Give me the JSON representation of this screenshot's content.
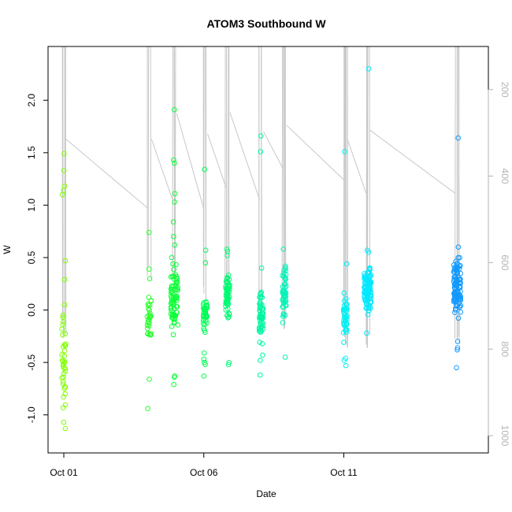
{
  "chart_data": {
    "type": "scatter",
    "title": "ATOM3 Southbound W",
    "xlabel": "Date",
    "ylabel": "W",
    "xlim": [
      0.0,
      14.6
    ],
    "ylim": [
      -1.25,
      2.4
    ],
    "x_ticks": [
      {
        "value": 0,
        "label": "Oct 01"
      },
      {
        "value": 5,
        "label": "Oct 06"
      },
      {
        "value": 10,
        "label": "Oct 11"
      }
    ],
    "y_ticks": [
      -1.0,
      -0.5,
      0.0,
      0.5,
      1.0,
      1.5,
      2.0
    ],
    "right_axis": {
      "label": "",
      "lim": [
        1040,
        155
      ],
      "ticks": [
        200,
        400,
        600,
        800,
        1000
      ],
      "color": "#b3b3b3"
    },
    "grid": false,
    "colors": {
      "points_start": "#7fff00",
      "points_mid": "#00ffcc",
      "points_end": "#1e90ff",
      "line": "#c8c8c8"
    },
    "casts": [
      {
        "x": 0.0,
        "n": 30,
        "min": -1.13,
        "max": 0.1,
        "top": 160,
        "bottom": 720,
        "extras": [
          1.49,
          1.33,
          1.18,
          1.14,
          1.1,
          0.47,
          0.29,
          0.05,
          -0.05,
          -0.07,
          -0.75,
          -0.8,
          -0.83,
          -1.07,
          -1.13
        ]
      },
      {
        "x": 3.05,
        "n": 28,
        "min": -0.32,
        "max": 0.2,
        "top": 165,
        "bottom": 590,
        "extras": [
          0.74,
          0.39,
          0.3,
          -0.66,
          -0.94
        ]
      },
      {
        "x": 3.95,
        "n": 75,
        "min": -0.4,
        "max": 0.55,
        "top": 155,
        "bottom": 620,
        "extras": [
          1.91,
          1.43,
          1.4,
          1.11,
          1.03,
          0.84,
          0.7,
          0.62,
          -0.63,
          -0.64,
          -0.71
        ]
      },
      {
        "x": 5.05,
        "n": 38,
        "min": -0.25,
        "max": 0.22,
        "top": 155,
        "bottom": 650,
        "extras": [
          1.34,
          0.57,
          0.45,
          -0.41,
          -0.47,
          -0.5,
          -0.52,
          -0.63
        ]
      },
      {
        "x": 5.85,
        "n": 55,
        "min": -0.2,
        "max": 0.45,
        "top": 155,
        "bottom": 660,
        "extras": [
          0.58,
          0.56,
          0.52,
          -0.5,
          -0.52
        ]
      },
      {
        "x": 7.05,
        "n": 55,
        "min": -0.35,
        "max": 0.28,
        "top": 155,
        "bottom": 680,
        "extras": [
          1.66,
          1.51,
          0.4,
          -0.43,
          -0.48,
          -0.62
        ]
      },
      {
        "x": 7.88,
        "n": 50,
        "min": -0.25,
        "max": 0.55,
        "top": 155,
        "bottom": 700,
        "extras": [
          0.58,
          0.4,
          -0.45
        ]
      },
      {
        "x": 10.05,
        "n": 40,
        "min": -0.4,
        "max": 0.3,
        "top": 155,
        "bottom": 750,
        "extras": [
          1.51,
          0.44,
          -0.46,
          -0.48,
          -0.53
        ]
      },
      {
        "x": 10.85,
        "n": 110,
        "min": -0.1,
        "max": 0.5,
        "top": 155,
        "bottom": 760,
        "extras": [
          2.3,
          0.57,
          0.55,
          -0.22
        ]
      },
      {
        "x": 14.05,
        "n": 95,
        "min": -0.25,
        "max": 0.62,
        "top": 155,
        "bottom": 770,
        "extras": [
          1.64,
          0.6,
          -0.3,
          -0.36,
          -0.38,
          -0.55
        ]
      }
    ]
  }
}
